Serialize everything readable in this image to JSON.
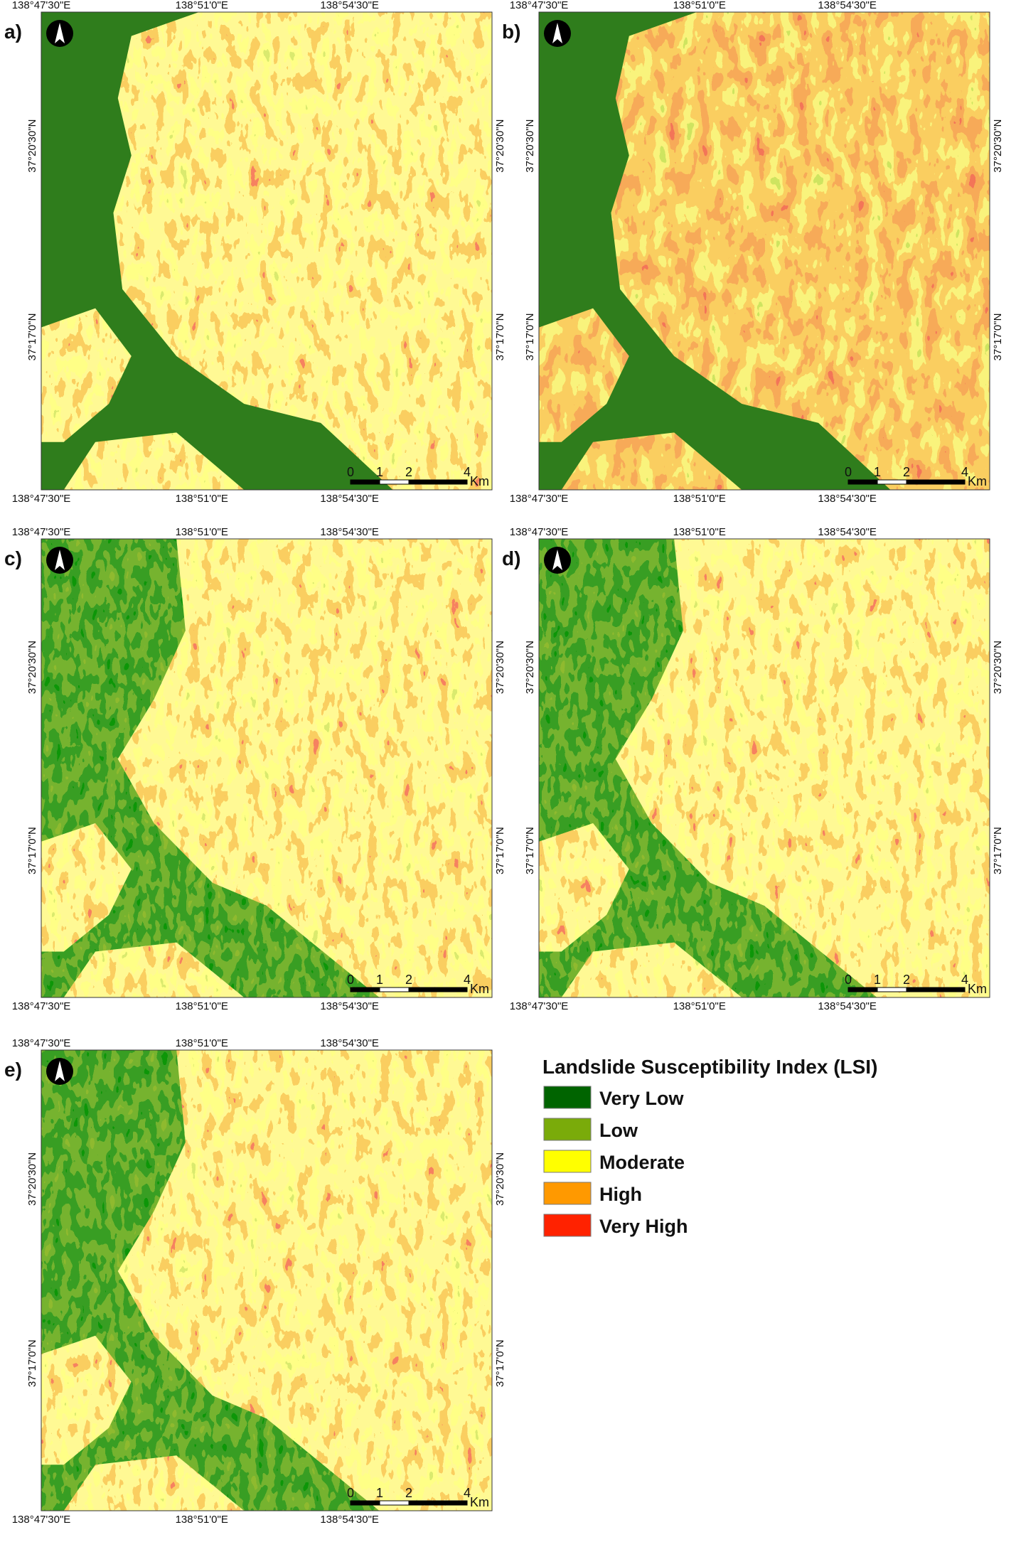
{
  "panels": [
    {
      "label": "a)"
    },
    {
      "label": "b)"
    },
    {
      "label": "c)"
    },
    {
      "label": "d)"
    },
    {
      "label": "e)"
    }
  ],
  "graticule": {
    "lon": [
      "138°47'30\"E",
      "138°51'0\"E",
      "138°54'30\"E"
    ],
    "lat": [
      "37°20'30\"N",
      "37°17'0\"N"
    ]
  },
  "scale_bar": {
    "ticks": [
      "0",
      "1",
      "2",
      "4"
    ],
    "unit": "Km"
  },
  "legend": {
    "title": "Landslide Susceptibility Index (LSI)",
    "items": [
      {
        "label": "Very Low",
        "color": "#006400"
      },
      {
        "label": "Low",
        "color": "#7aab0a"
      },
      {
        "label": "Moderate",
        "color": "#ffff00"
      },
      {
        "label": "High",
        "color": "#ff9900"
      },
      {
        "label": "Very High",
        "color": "#ff2200"
      }
    ]
  }
}
